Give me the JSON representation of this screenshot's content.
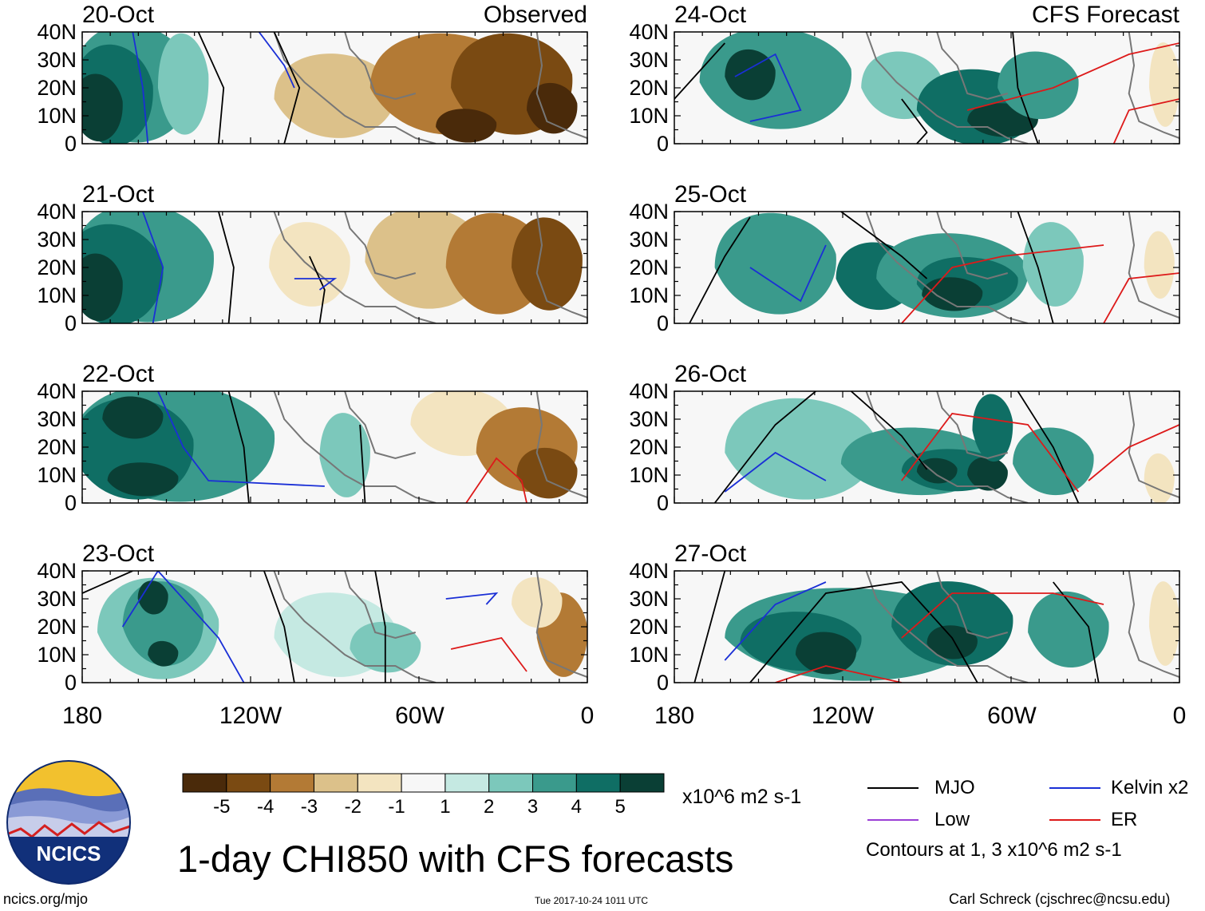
{
  "panels": [
    {
      "date": "20-Oct",
      "tag": "Observed",
      "col": 0,
      "row": 0
    },
    {
      "date": "21-Oct",
      "tag": "",
      "col": 0,
      "row": 1
    },
    {
      "date": "22-Oct",
      "tag": "",
      "col": 0,
      "row": 2
    },
    {
      "date": "23-Oct",
      "tag": "",
      "col": 0,
      "row": 3
    },
    {
      "date": "24-Oct",
      "tag": "CFS Forecast",
      "col": 1,
      "row": 0
    },
    {
      "date": "25-Oct",
      "tag": "",
      "col": 1,
      "row": 1
    },
    {
      "date": "26-Oct",
      "tag": "",
      "col": 1,
      "row": 2
    },
    {
      "date": "27-Oct",
      "tag": "",
      "col": 1,
      "row": 3
    }
  ],
  "axes": {
    "lat_ticks": [
      "40N",
      "30N",
      "20N",
      "10N",
      "0"
    ],
    "lon_ticks": [
      "180",
      "120W",
      "60W",
      "0"
    ]
  },
  "colorbar": {
    "colors": [
      "#4a2a0a",
      "#7a4a12",
      "#b37a35",
      "#dcc18a",
      "#f3e4c0",
      "#f7f7f7",
      "#c5e9e2",
      "#7cc8bb",
      "#3a9a8c",
      "#0f6e64",
      "#0a3f35"
    ],
    "labels": [
      "-5",
      "-4",
      "-3",
      "-2",
      "-1",
      "1",
      "2",
      "3",
      "4",
      "5"
    ],
    "units": "x10^6 m2 s-1"
  },
  "legend": {
    "items": [
      {
        "label": "MJO",
        "color": "#000000"
      },
      {
        "label": "Kelvin x2",
        "color": "#1a2fd6"
      },
      {
        "label": "Low",
        "color": "#9b3fd6"
      },
      {
        "label": "ER",
        "color": "#dd1a1a"
      }
    ],
    "note": "Contours at 1, 3 x10^6 m2 s-1"
  },
  "logo": {
    "text": "NCICS"
  },
  "title": "1-day CHI850 with CFS forecasts",
  "footer": {
    "url": "ncics.org/mjo",
    "timestamp": "Tue 2017-10-24 1011 UTC",
    "author": "Carl Schreck (cjschrec@ncsu.edu)"
  }
}
